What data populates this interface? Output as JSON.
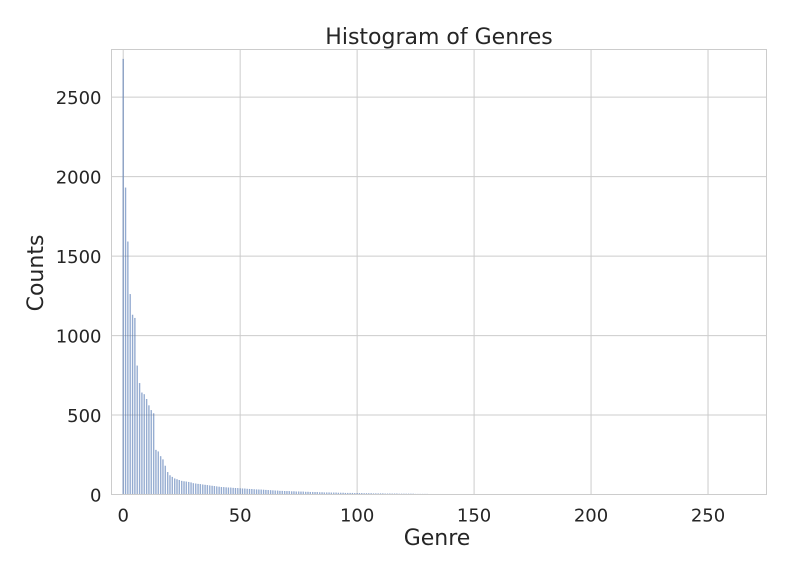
{
  "chart_data": {
    "type": "bar",
    "title": "Histogram of Genres",
    "xlabel": "Genre",
    "ylabel": "Counts",
    "xlim": [
      -5,
      275
    ],
    "ylim": [
      0,
      2800
    ],
    "xticks": [
      0,
      50,
      100,
      150,
      200,
      250
    ],
    "yticks": [
      0,
      500,
      1000,
      1500,
      2000,
      2500
    ],
    "grid": true,
    "bar_color": "#4c72b0",
    "series": [
      {
        "x": [
          0,
          1,
          2,
          3,
          4,
          5,
          6,
          7,
          8,
          9,
          10,
          11,
          12,
          13,
          14,
          15,
          16,
          17,
          18,
          19,
          20,
          21,
          22,
          23,
          24,
          25,
          26,
          27,
          28,
          29,
          30,
          31,
          32,
          33,
          34,
          35,
          36,
          37,
          38,
          39,
          40,
          41,
          42,
          43,
          44,
          45,
          46,
          47,
          48,
          49,
          50,
          51,
          52,
          53,
          54,
          55,
          56,
          57,
          58,
          59,
          60,
          61,
          62,
          63,
          64,
          65,
          66,
          67,
          68,
          69,
          70,
          71,
          72,
          73,
          74,
          75,
          76,
          77,
          78,
          79,
          80,
          81,
          82,
          83,
          84,
          85,
          86,
          87,
          88,
          89,
          90,
          91,
          92,
          93,
          94,
          95,
          96,
          97,
          98,
          99,
          100,
          101,
          102,
          103,
          104,
          105,
          106,
          107,
          108,
          109,
          110,
          111,
          112,
          113,
          114,
          115,
          116,
          117,
          118,
          119,
          120,
          121,
          122,
          123,
          124,
          125,
          126,
          127,
          128,
          129,
          130,
          135,
          140,
          145,
          150,
          155,
          160,
          165,
          170,
          175,
          180,
          185,
          190,
          195,
          200,
          205,
          210,
          215,
          220,
          225,
          230,
          235,
          240,
          245,
          250,
          255,
          260,
          262
        ],
        "values": [
          2740,
          1930,
          1590,
          1260,
          1130,
          1110,
          810,
          700,
          640,
          630,
          600,
          560,
          530,
          510,
          280,
          270,
          240,
          220,
          180,
          140,
          120,
          110,
          100,
          95,
          90,
          85,
          82,
          80,
          78,
          75,
          70,
          68,
          66,
          64,
          62,
          60,
          58,
          56,
          54,
          52,
          50,
          48,
          46,
          45,
          44,
          43,
          42,
          41,
          40,
          39,
          38,
          37,
          36,
          35,
          34,
          33,
          32,
          31,
          30,
          30,
          29,
          28,
          27,
          26,
          25,
          24,
          23,
          22,
          22,
          21,
          20,
          20,
          19,
          19,
          18,
          18,
          17,
          17,
          16,
          16,
          15,
          15,
          14,
          14,
          13,
          13,
          12,
          12,
          12,
          11,
          11,
          11,
          10,
          10,
          10,
          9,
          9,
          9,
          9,
          8,
          8,
          8,
          8,
          7,
          7,
          7,
          7,
          6,
          6,
          6,
          6,
          6,
          5,
          5,
          5,
          5,
          5,
          5,
          4,
          4,
          4,
          4,
          4,
          4,
          4,
          3,
          3,
          3,
          3,
          3,
          3,
          2,
          2,
          2,
          2,
          2,
          2,
          2,
          2,
          2,
          2,
          1,
          1,
          1,
          1,
          1,
          1,
          1,
          1,
          1,
          1,
          1,
          1,
          1,
          1,
          1,
          1,
          1
        ]
      }
    ]
  }
}
